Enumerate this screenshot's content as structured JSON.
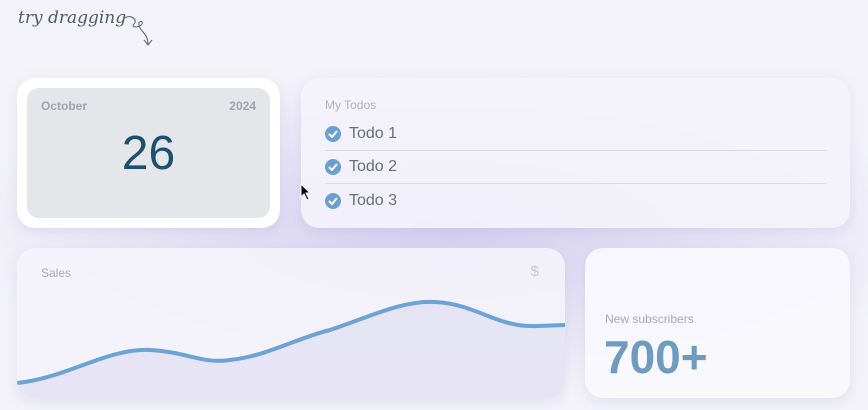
{
  "hint": {
    "text": "try dragging"
  },
  "calendar": {
    "month": "October",
    "year": "2024",
    "day": "26"
  },
  "todos": {
    "title": "My Todos",
    "items": [
      {
        "label": "Todo 1",
        "done": true
      },
      {
        "label": "Todo 2",
        "done": true
      },
      {
        "label": "Todo 3",
        "done": true
      }
    ]
  },
  "sales": {
    "title": "Sales",
    "currency_icon": "$"
  },
  "subscribers": {
    "title": "New subscribers",
    "value": "700+"
  },
  "colors": {
    "accent": "#6aa0d0",
    "day": "#1c4f70",
    "subscribers": "#6e9bc0"
  }
}
